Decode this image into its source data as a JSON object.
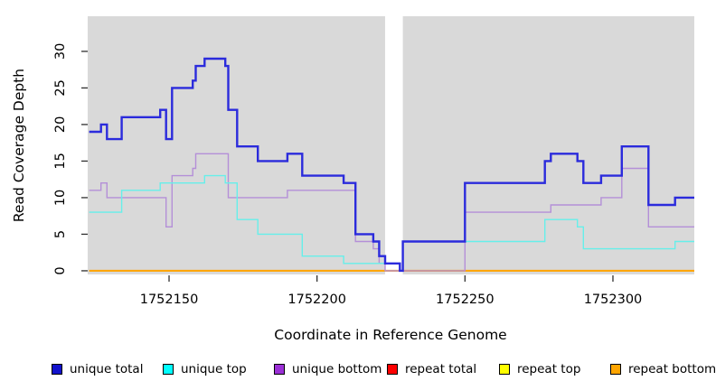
{
  "chart_data": {
    "type": "step-line",
    "title": "",
    "xlabel": "Coordinate in Reference Genome",
    "ylabel": "Read Coverage Depth",
    "xlim": [
      1752122.5,
      1752327.5
    ],
    "ylim": [
      -0.5,
      34.8
    ],
    "x_ticks": [
      1752150,
      1752200,
      1752250,
      1752300
    ],
    "y_ticks": [
      0,
      5,
      10,
      15,
      20,
      25,
      30
    ],
    "grid": false,
    "plot_bg_color": "#D9D9D9",
    "axis_color": "#303030",
    "mask_region": {
      "from": 1752223,
      "to": 1752229,
      "color": "#FFFFFF"
    },
    "legend_position": "bottom",
    "series": [
      {
        "name": "unique total",
        "line_color": "#2B2BDC",
        "legend_color": "#1212CC",
        "line_width": 2.4,
        "steps": [
          [
            1752123,
            19
          ],
          [
            1752127,
            20
          ],
          [
            1752129,
            18
          ],
          [
            1752134,
            21
          ],
          [
            1752147,
            22
          ],
          [
            1752149,
            18
          ],
          [
            1752151,
            25
          ],
          [
            1752158,
            26
          ],
          [
            1752159,
            28
          ],
          [
            1752162,
            29
          ],
          [
            1752169,
            28
          ],
          [
            1752170,
            22
          ],
          [
            1752173,
            17
          ],
          [
            1752180,
            15
          ],
          [
            1752190,
            16
          ],
          [
            1752195,
            13
          ],
          [
            1752209,
            12
          ],
          [
            1752213,
            5
          ],
          [
            1752219,
            4
          ],
          [
            1752221,
            2
          ],
          [
            1752223,
            1
          ],
          [
            1752228,
            0
          ],
          [
            1752229,
            4
          ],
          [
            1752250,
            12
          ],
          [
            1752277,
            15
          ],
          [
            1752279,
            16
          ],
          [
            1752288,
            15
          ],
          [
            1752290,
            12
          ],
          [
            1752296,
            13
          ],
          [
            1752303,
            17
          ],
          [
            1752312,
            9
          ],
          [
            1752321,
            10
          ]
        ]
      },
      {
        "name": "unique top",
        "line_color": "#66EFEA",
        "legend_color": "#00FFFF",
        "line_width": 1.4,
        "steps": [
          [
            1752123,
            8
          ],
          [
            1752134,
            11
          ],
          [
            1752147,
            12
          ],
          [
            1752162,
            13
          ],
          [
            1752169,
            12
          ],
          [
            1752173,
            7
          ],
          [
            1752180,
            5
          ],
          [
            1752195,
            2
          ],
          [
            1752209,
            1
          ],
          [
            1752228,
            0
          ],
          [
            1752229,
            4
          ],
          [
            1752277,
            7
          ],
          [
            1752288,
            6
          ],
          [
            1752290,
            3
          ],
          [
            1752321,
            4
          ]
        ]
      },
      {
        "name": "unique bottom",
        "line_color": "#B48FD8",
        "legend_color": "#9B30D6",
        "line_width": 1.4,
        "steps": [
          [
            1752123,
            11
          ],
          [
            1752127,
            12
          ],
          [
            1752129,
            10
          ],
          [
            1752149,
            6
          ],
          [
            1752151,
            13
          ],
          [
            1752158,
            14
          ],
          [
            1752159,
            16
          ],
          [
            1752170,
            10
          ],
          [
            1752190,
            11
          ],
          [
            1752213,
            4
          ],
          [
            1752219,
            3
          ],
          [
            1752221,
            1
          ],
          [
            1752223,
            0
          ],
          [
            1752250,
            8
          ],
          [
            1752279,
            9
          ],
          [
            1752296,
            10
          ],
          [
            1752303,
            14
          ],
          [
            1752312,
            6
          ]
        ]
      },
      {
        "name": "repeat total",
        "line_color": "#FF0000",
        "legend_color": "#FF0000",
        "line_width": 1.4,
        "steps": [
          [
            1752123,
            0
          ]
        ]
      },
      {
        "name": "repeat top",
        "line_color": "#FFFF00",
        "legend_color": "#FFFF00",
        "line_width": 1.4,
        "steps": [
          [
            1752123,
            0
          ]
        ]
      },
      {
        "name": "repeat bottom",
        "line_color": "#FFA500",
        "legend_color": "#FFA500",
        "line_width": 2.0,
        "steps": [
          [
            1752123,
            0
          ]
        ]
      }
    ]
  }
}
